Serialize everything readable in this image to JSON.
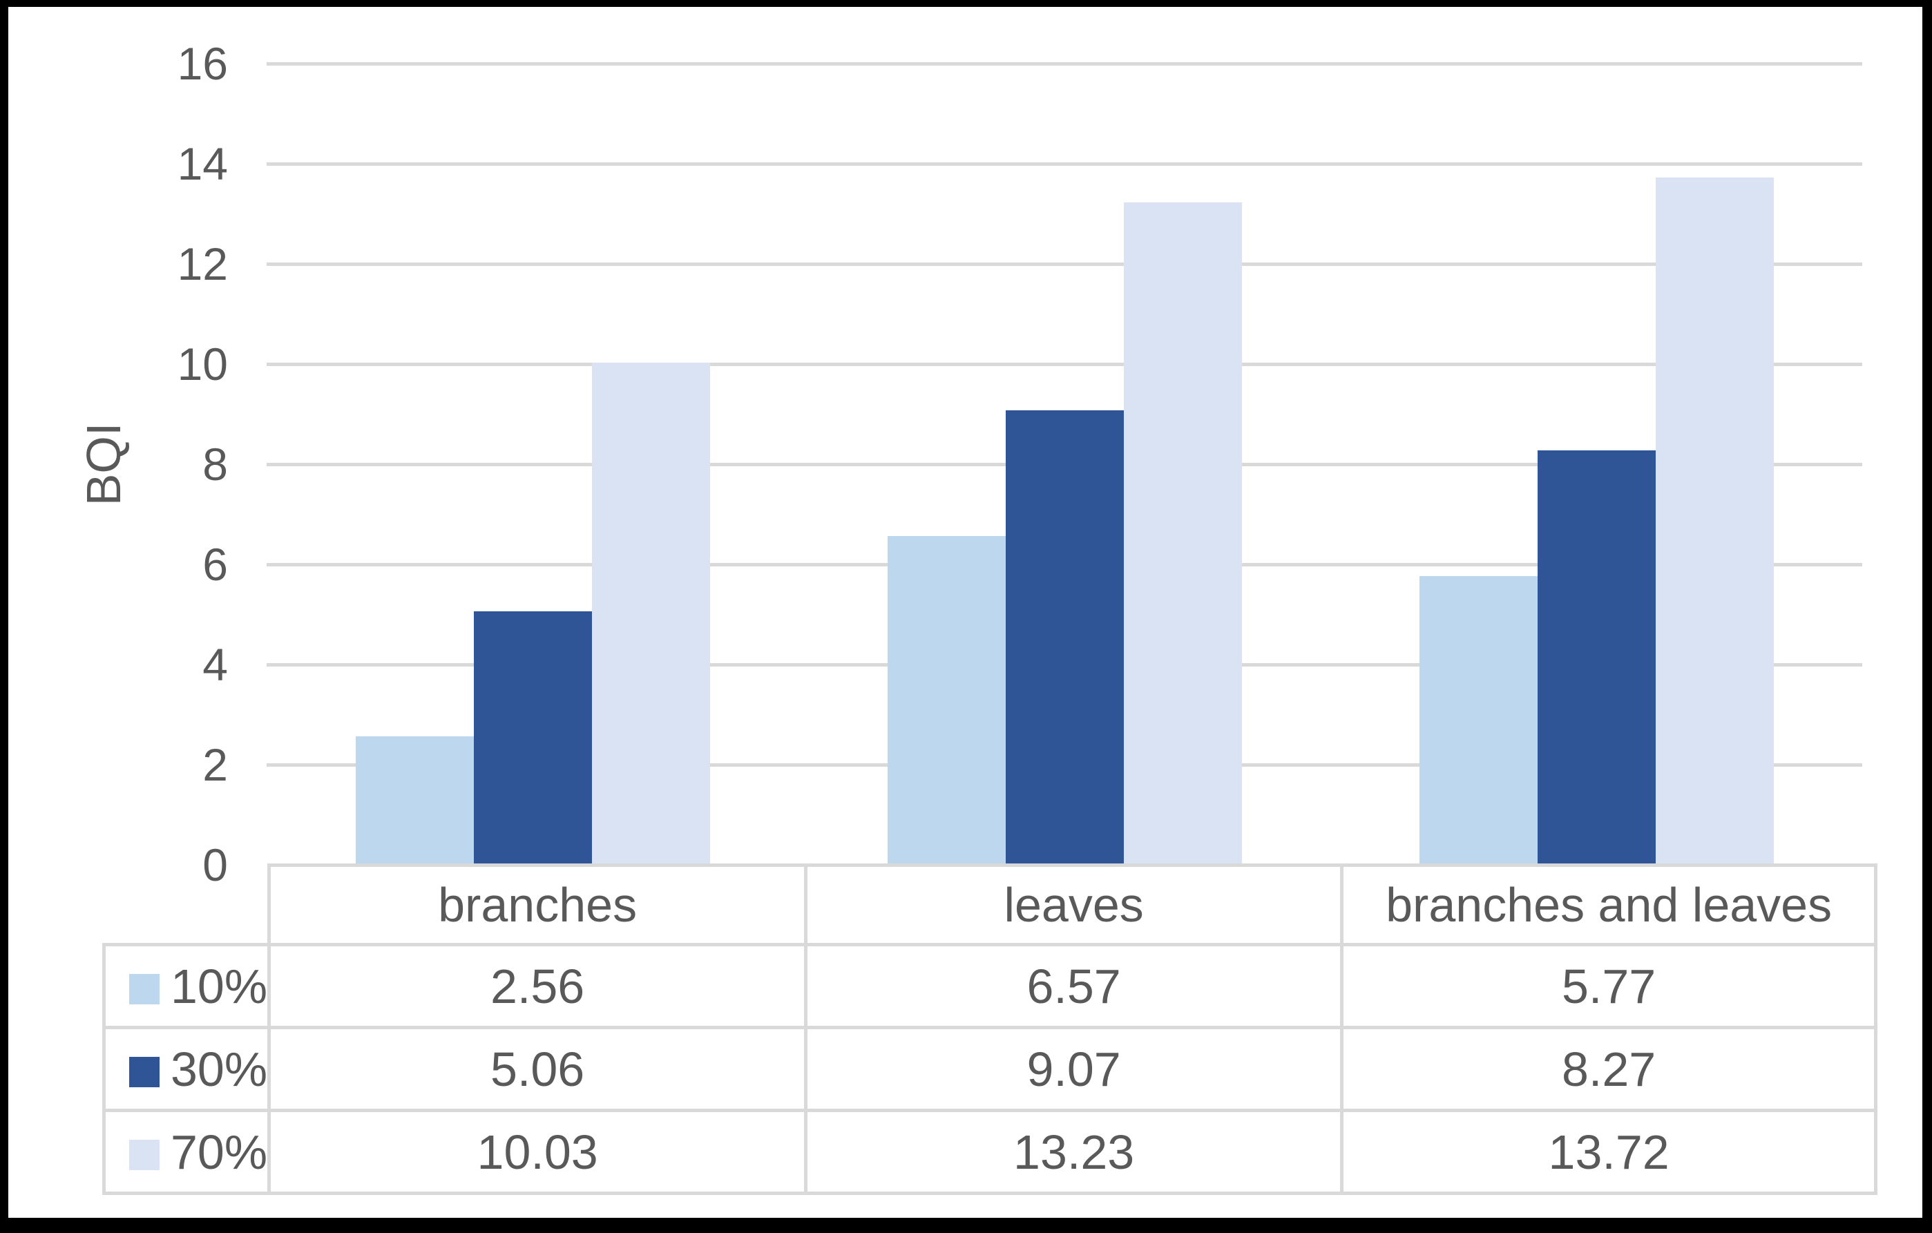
{
  "window": {
    "background": "#FFFFFF",
    "frame_border_color": "#000000"
  },
  "chart_data": {
    "type": "bar",
    "title": "",
    "xlabel": "",
    "ylabel": "BQI",
    "ylim": [
      0,
      16
    ],
    "yticks": [
      0,
      2,
      4,
      6,
      8,
      10,
      12,
      14,
      16
    ],
    "ytick_labels": [
      "0",
      "2",
      "4",
      "6",
      "8",
      "10",
      "12",
      "14",
      "16"
    ],
    "grid": true,
    "gridline_color": "#D9D9D9",
    "axis_text_color": "#595959",
    "legend_position": "data-table-left-keys",
    "categories": [
      "branches",
      "leaves",
      "branches and leaves"
    ],
    "series": [
      {
        "name": "10%",
        "color": "#BDD7EE",
        "values": [
          2.56,
          6.57,
          5.77
        ],
        "display_values": [
          "2.56",
          "6.57",
          "5.77"
        ]
      },
      {
        "name": "30%",
        "color": "#2F5597",
        "values": [
          5.06,
          9.07,
          8.27
        ],
        "display_values": [
          "5.06",
          "9.07",
          "8.27"
        ]
      },
      {
        "name": "70%",
        "color": "#DAE3F3",
        "values": [
          10.03,
          13.23,
          13.72
        ],
        "display_values": [
          "10.03",
          "13.23",
          "13.72"
        ]
      }
    ],
    "data_table": {
      "shown": true,
      "border_color": "#D9D9D9"
    }
  }
}
